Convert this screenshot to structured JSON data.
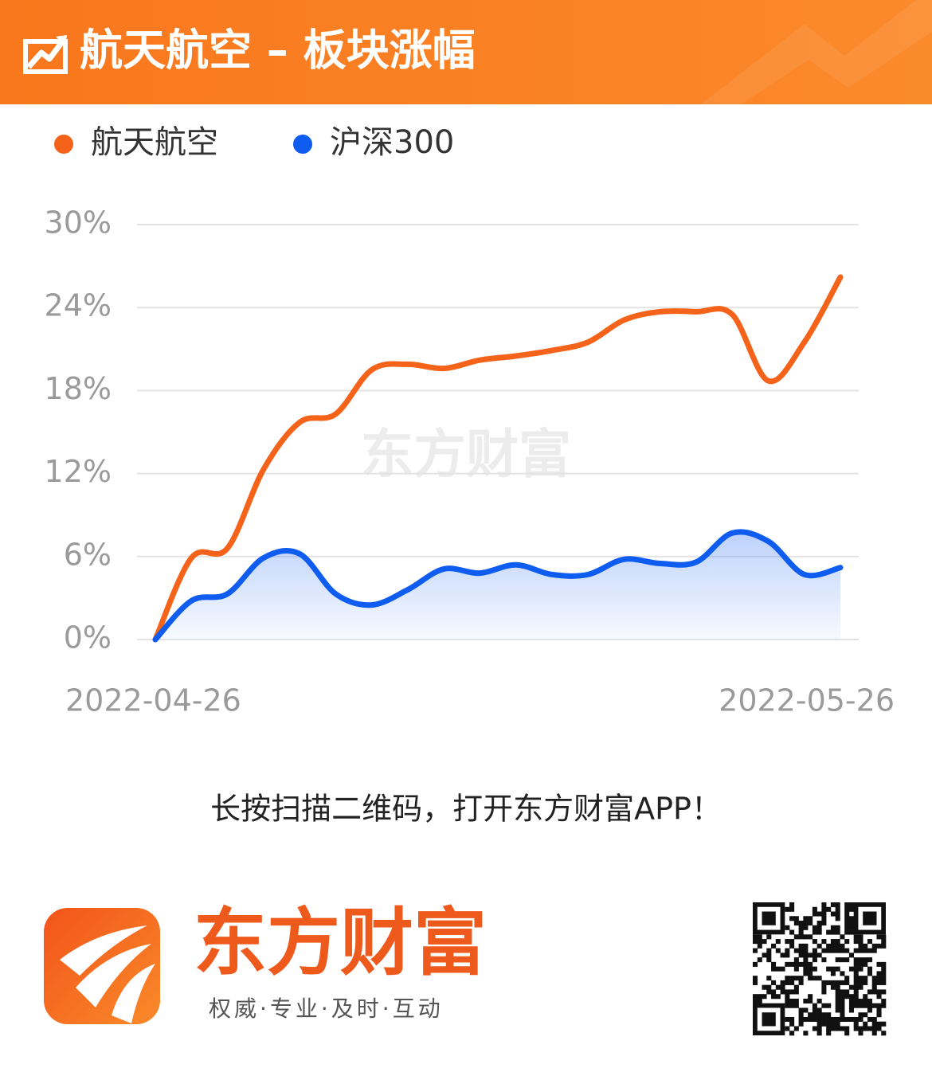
{
  "header": {
    "title": "航天航空 – 板块涨幅"
  },
  "chart_data": {
    "type": "line",
    "watermark": "东方财富",
    "categories": [
      "2022-04-26",
      null,
      null,
      null,
      null,
      null,
      null,
      null,
      null,
      null,
      null,
      null,
      null,
      null,
      null,
      null,
      null,
      null,
      null,
      "2022-05-26"
    ],
    "series": [
      {
        "name": "航天航空",
        "color": "#f5631a",
        "area": false,
        "values": [
          0,
          5.9,
          6.6,
          12.3,
          15.7,
          16.3,
          19.5,
          19.9,
          19.6,
          20.2,
          20.5,
          20.9,
          21.5,
          23.1,
          23.7,
          23.7,
          23.5,
          18.7,
          21.5,
          26.2
        ]
      },
      {
        "name": "沪深300",
        "color": "#0f5cf0",
        "area": true,
        "values": [
          0,
          2.8,
          3.3,
          5.9,
          6.2,
          3.3,
          2.5,
          3.6,
          5.1,
          4.8,
          5.4,
          4.7,
          4.7,
          5.8,
          5.5,
          5.6,
          7.7,
          7.1,
          4.7,
          5.2
        ]
      }
    ],
    "ylim": [
      0,
      30
    ],
    "yticks": [
      {
        "value": 0,
        "label": "0%"
      },
      {
        "value": 6,
        "label": "6%"
      },
      {
        "value": 12,
        "label": "12%"
      },
      {
        "value": 18,
        "label": "18%"
      },
      {
        "value": 24,
        "label": "24%"
      },
      {
        "value": 30,
        "label": "30%"
      }
    ],
    "grid": true
  },
  "footer": {
    "prompt": "长按扫描二维码，打开东方财富APP！",
    "brand": "东方财富",
    "slogan": "权威·专业·及时·互动"
  }
}
